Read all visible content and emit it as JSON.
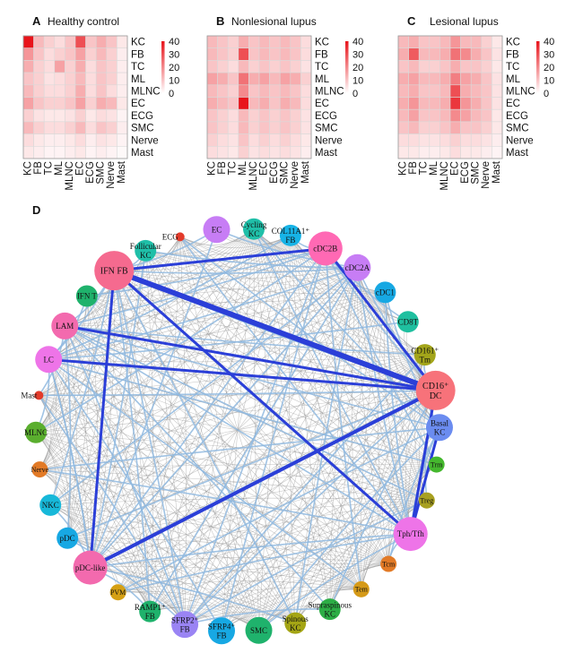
{
  "panels": [
    {
      "letter": "A",
      "title": "Healthy control",
      "matrix": [
        [
          40,
          12,
          8,
          6,
          10,
          30,
          10,
          14,
          10,
          4
        ],
        [
          18,
          10,
          6,
          8,
          10,
          16,
          8,
          12,
          8,
          3
        ],
        [
          14,
          8,
          6,
          16,
          8,
          14,
          6,
          10,
          8,
          3
        ],
        [
          10,
          8,
          5,
          6,
          8,
          12,
          6,
          10,
          8,
          3
        ],
        [
          12,
          8,
          6,
          6,
          8,
          14,
          6,
          10,
          6,
          3
        ],
        [
          16,
          10,
          8,
          8,
          10,
          16,
          8,
          14,
          12,
          4
        ],
        [
          8,
          5,
          4,
          4,
          5,
          8,
          4,
          6,
          5,
          2
        ],
        [
          12,
          8,
          6,
          6,
          8,
          12,
          6,
          10,
          8,
          3
        ],
        [
          6,
          4,
          3,
          3,
          4,
          6,
          3,
          5,
          4,
          2
        ],
        [
          4,
          3,
          2,
          2,
          3,
          4,
          2,
          3,
          2,
          1
        ]
      ]
    },
    {
      "letter": "B",
      "title": "Nonlesional lupus",
      "matrix": [
        [
          12,
          10,
          8,
          14,
          10,
          12,
          10,
          12,
          10,
          6
        ],
        [
          12,
          10,
          8,
          30,
          10,
          12,
          10,
          12,
          10,
          6
        ],
        [
          10,
          8,
          6,
          12,
          8,
          10,
          8,
          10,
          8,
          5
        ],
        [
          16,
          14,
          10,
          24,
          14,
          16,
          12,
          16,
          14,
          8
        ],
        [
          12,
          10,
          8,
          20,
          10,
          12,
          10,
          12,
          10,
          6
        ],
        [
          14,
          12,
          10,
          40,
          12,
          14,
          10,
          14,
          12,
          6
        ],
        [
          10,
          8,
          6,
          12,
          8,
          10,
          8,
          10,
          8,
          5
        ],
        [
          10,
          8,
          6,
          12,
          8,
          10,
          8,
          10,
          8,
          5
        ],
        [
          8,
          6,
          5,
          10,
          6,
          8,
          6,
          8,
          6,
          4
        ],
        [
          6,
          5,
          4,
          8,
          5,
          6,
          5,
          6,
          5,
          3
        ]
      ]
    },
    {
      "letter": "C",
      "title": "Lesional lupus",
      "matrix": [
        [
          12,
          14,
          10,
          10,
          12,
          18,
          12,
          12,
          8,
          4
        ],
        [
          14,
          28,
          12,
          12,
          14,
          24,
          20,
          14,
          10,
          5
        ],
        [
          10,
          12,
          8,
          8,
          10,
          14,
          10,
          10,
          8,
          4
        ],
        [
          14,
          16,
          12,
          12,
          14,
          22,
          16,
          14,
          10,
          5
        ],
        [
          12,
          14,
          10,
          10,
          12,
          30,
          14,
          12,
          10,
          5
        ],
        [
          14,
          18,
          12,
          12,
          14,
          34,
          18,
          14,
          10,
          5
        ],
        [
          12,
          16,
          10,
          10,
          12,
          20,
          16,
          12,
          10,
          4
        ],
        [
          10,
          12,
          8,
          8,
          10,
          14,
          10,
          10,
          8,
          4
        ],
        [
          6,
          6,
          5,
          5,
          6,
          8,
          6,
          6,
          5,
          3
        ],
        [
          4,
          4,
          3,
          3,
          4,
          6,
          4,
          4,
          3,
          2
        ]
      ]
    }
  ],
  "heatmap": {
    "row_labels": [
      "KC",
      "FB",
      "TC",
      "ML",
      "MLNC",
      "EC",
      "ECG",
      "SMC",
      "Nerve",
      "Mast"
    ],
    "col_labels": [
      "KC",
      "FB",
      "TC",
      "ML",
      "MLNC",
      "EC",
      "ECG",
      "SMC",
      "Nerve",
      "Mast"
    ],
    "scale_ticks": [
      "40",
      "30",
      "20",
      "10",
      "0"
    ],
    "scale_max": 40,
    "color_low": "#ffffff",
    "color_high": "#e8141b"
  },
  "network": {
    "letter": "D",
    "nodes": [
      {
        "id": "ec",
        "lines": [
          "EC"
        ],
        "color": "#c77df5",
        "size": "m"
      },
      {
        "id": "cycling-kc",
        "lines": [
          "Cycling",
          "KC"
        ],
        "color": "#1fbfa8",
        "size": "s"
      },
      {
        "id": "col11a1-fb",
        "lines": [
          "COL11A1⁺",
          "FB"
        ],
        "color": "#17b3e6",
        "size": "s"
      },
      {
        "id": "cdc2b",
        "lines": [
          "cDC2B"
        ],
        "color": "#ff69b4",
        "size": "l"
      },
      {
        "id": "cdc2a",
        "lines": [
          "cDC2A"
        ],
        "color": "#c77df5",
        "size": "m"
      },
      {
        "id": "cdc1",
        "lines": [
          "cDC1"
        ],
        "color": "#17a8e3",
        "size": "s"
      },
      {
        "id": "cd8t",
        "lines": [
          "CD8T"
        ],
        "color": "#1fbf9f",
        "size": "s"
      },
      {
        "id": "cd161-tm",
        "lines": [
          "CD161⁺",
          "Tm"
        ],
        "color": "#a3a51a",
        "size": "s"
      },
      {
        "id": "cd16-dc",
        "lines": [
          "CD16⁺",
          "DC"
        ],
        "color": "#f7727a",
        "size": "xl"
      },
      {
        "id": "basal-kc",
        "lines": [
          "Basal",
          "KC"
        ],
        "color": "#6b8cf0",
        "size": "m"
      },
      {
        "id": "trm",
        "lines": [
          "Trm"
        ],
        "color": "#45b82e",
        "size": "xs"
      },
      {
        "id": "treg",
        "lines": [
          "Treg"
        ],
        "color": "#a8a020",
        "size": "xs"
      },
      {
        "id": "tph-tfh",
        "lines": [
          "Tph/Tfh"
        ],
        "color": "#ee74e8",
        "size": "l"
      },
      {
        "id": "tcm",
        "lines": [
          "Tcm"
        ],
        "color": "#e27a26",
        "size": "xs"
      },
      {
        "id": "tem",
        "lines": [
          "Tem"
        ],
        "color": "#d59a18",
        "size": "xs"
      },
      {
        "id": "supraspinous-kc",
        "lines": [
          "Supraspinous",
          "KC"
        ],
        "color": "#2dae46",
        "size": "s"
      },
      {
        "id": "spinous-kc",
        "lines": [
          "Spinous",
          "KC"
        ],
        "color": "#a4a515",
        "size": "s"
      },
      {
        "id": "smc",
        "lines": [
          "SMC"
        ],
        "color": "#1fb26c",
        "size": "m"
      },
      {
        "id": "sfrp4-fb",
        "lines": [
          "SFRP4⁺",
          "FB"
        ],
        "color": "#17a8e3",
        "size": "m"
      },
      {
        "id": "sfrp2-fb",
        "lines": [
          "SFRP2⁺",
          "FB"
        ],
        "color": "#9a84f4",
        "size": "m"
      },
      {
        "id": "ramp1-fb",
        "lines": [
          "RAMP1⁺",
          "FB"
        ],
        "color": "#1fb26c",
        "size": "s"
      },
      {
        "id": "pvm",
        "lines": [
          "PVM"
        ],
        "color": "#d5a014",
        "size": "xs"
      },
      {
        "id": "pdc-like",
        "lines": [
          "pDC-like"
        ],
        "color": "#f36aae",
        "size": "l"
      },
      {
        "id": "pdc",
        "lines": [
          "pDC"
        ],
        "color": "#17a8e3",
        "size": "s"
      },
      {
        "id": "nkc",
        "lines": [
          "NKC"
        ],
        "color": "#17b8d9",
        "size": "s"
      },
      {
        "id": "nerve",
        "lines": [
          "Nerve"
        ],
        "color": "#e27a26",
        "size": "xs"
      },
      {
        "id": "mlnc",
        "lines": [
          "MLNC"
        ],
        "color": "#5aae2e",
        "size": "s"
      },
      {
        "id": "mast",
        "lines": [
          "Mast"
        ],
        "color": "#e33b2b",
        "size": "dot"
      },
      {
        "id": "lc",
        "lines": [
          "LC"
        ],
        "color": "#ee74e8",
        "size": "m"
      },
      {
        "id": "lam",
        "lines": [
          "LAM"
        ],
        "color": "#f36aae",
        "size": "m"
      },
      {
        "id": "ifn-t",
        "lines": [
          "IFN T"
        ],
        "color": "#1fb26c",
        "size": "s"
      },
      {
        "id": "ifn-fb",
        "lines": [
          "IFN FB"
        ],
        "color": "#f56a8f",
        "size": "xl"
      },
      {
        "id": "follicular-kc",
        "lines": [
          "Follicular",
          "KC"
        ],
        "color": "#1fbfa8",
        "size": "s"
      },
      {
        "id": "ecg",
        "lines": [
          "ECG"
        ],
        "color": "#e33b2b",
        "size": "dot"
      }
    ],
    "strong_edges": [
      [
        "ifn-fb",
        "cdc2b",
        3
      ],
      [
        "ifn-fb",
        "cd16-dc",
        6
      ],
      [
        "ifn-fb",
        "pdc-like",
        3
      ],
      [
        "ifn-fb",
        "tph-tfh",
        3
      ],
      [
        "lam",
        "cd16-dc",
        3
      ],
      [
        "lc",
        "cd16-dc",
        3
      ],
      [
        "cd16-dc",
        "pdc-like",
        4
      ],
      [
        "cdc2b",
        "cd16-dc",
        3
      ],
      [
        "cd16-dc",
        "tph-tfh",
        3
      ],
      [
        "basal-kc",
        "tph-tfh",
        3
      ]
    ],
    "edge_colors": {
      "strong": "#2b3fd8",
      "medium": "#8fb8df",
      "weak": "#8f8f8f"
    }
  }
}
